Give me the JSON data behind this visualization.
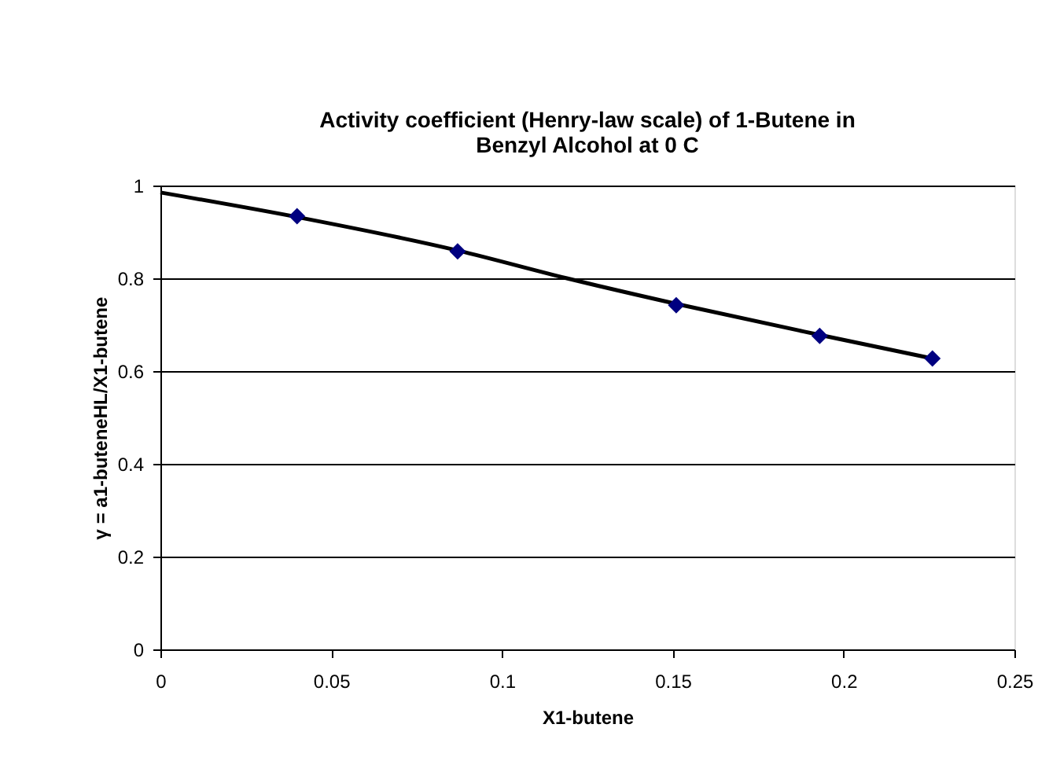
{
  "chart_data": {
    "type": "scatter",
    "title": [
      "Activity coefficient (Henry-law scale) of 1-Butene in",
      "Benzyl Alcohol at 0 C"
    ],
    "xlabel": "X1-butene",
    "ylabel": "γ = a1-buteneHL/X1-butene",
    "xlim": [
      0,
      0.25
    ],
    "xticks": [
      0,
      0.05,
      0.1,
      0.15,
      0.2,
      0.25
    ],
    "ylim": [
      0,
      1
    ],
    "yticks": [
      0,
      0.2,
      0.4,
      0.6,
      0.8,
      1
    ],
    "grid": "y",
    "series": [
      {
        "type": "line",
        "color": "#000000",
        "line_style": "solid",
        "x": [
          0,
          0.04,
          0.087,
          0.119,
          0.151,
          0.193,
          0.226
        ],
        "values": [
          0.985,
          0.932,
          0.86,
          0.8,
          0.745,
          0.678,
          0.627
        ]
      },
      {
        "color": "#000080",
        "marker": "diamond",
        "x": [
          0.04,
          0.087,
          0.151,
          0.193,
          0.226
        ],
        "values": [
          0.934,
          0.858,
          0.742,
          0.676,
          0.627
        ]
      }
    ]
  }
}
